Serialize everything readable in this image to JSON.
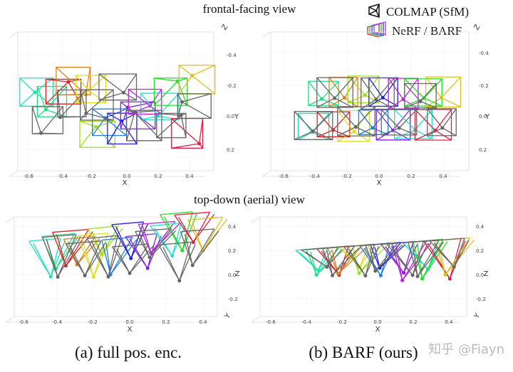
{
  "titles": {
    "frontal": "frontal-facing view",
    "topdown": "top-down (aerial) view"
  },
  "legend": [
    {
      "label": "COLMAP (SfM)"
    },
    {
      "label": "NeRF / BARF"
    }
  ],
  "panels": [
    {
      "x_label": "X",
      "side_label": "Y",
      "corner_label": "Z",
      "x_ticks": [
        "-0.6",
        "-0.4",
        "-0.2",
        "0.0",
        "0.2",
        "0.4"
      ],
      "side_ticks": [
        "-0.4",
        "-0.2",
        "0.0",
        "0.2"
      ]
    },
    {
      "x_label": "X",
      "side_label": "Y",
      "corner_label": "Z",
      "x_ticks": [
        "-0.6",
        "-0.4",
        "-0.2",
        "0.0",
        "0.2",
        "0.4"
      ],
      "side_ticks": [
        "-0.4",
        "-0.2",
        "0.0",
        "0.2"
      ]
    },
    {
      "x_label": "X",
      "side_label": "Z",
      "corner_label": "Y",
      "x_ticks": [
        "-0.6",
        "-0.4",
        "-0.2",
        "0.0",
        "0.2",
        "0.4"
      ],
      "side_ticks": [
        "0.4",
        "0.2",
        "0.0",
        "-0.2"
      ]
    },
    {
      "x_label": "X",
      "side_label": "Z",
      "corner_label": "Y",
      "x_ticks": [
        "-0.6",
        "-0.4",
        "-0.2",
        "0.0",
        "0.2",
        "0.4"
      ],
      "side_ticks": [
        "0.4",
        "0.2",
        "0.0",
        "-0.2"
      ]
    }
  ],
  "captions": [
    "(a) full pos. enc.",
    "(b) BARF (ours)"
  ],
  "watermark": "知乎 @Fiayn"
}
